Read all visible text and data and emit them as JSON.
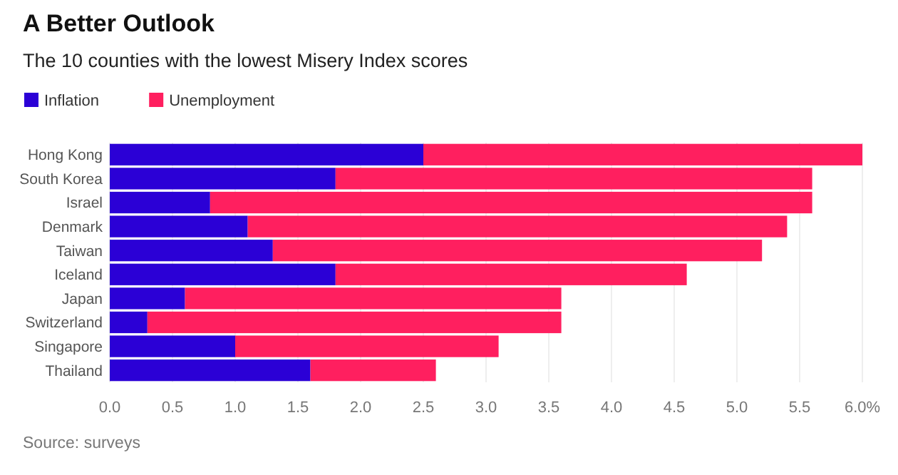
{
  "chart_data": {
    "type": "bar",
    "orientation": "horizontal",
    "stacked": true,
    "title": "A Better Outlook",
    "subtitle": "The 10 counties with the lowest Misery Index scores",
    "categories": [
      "Hong Kong",
      "South Korea",
      "Israel",
      "Denmark",
      "Taiwan",
      "Iceland",
      "Japan",
      "Switzerland",
      "Singapore",
      "Thailand"
    ],
    "series": [
      {
        "name": "Inflation",
        "color": "#2b00d6",
        "values": [
          2.5,
          1.8,
          0.8,
          1.1,
          1.3,
          1.8,
          0.6,
          0.3,
          1.0,
          1.6
        ]
      },
      {
        "name": "Unemployment",
        "color": "#ff1f5f",
        "values": [
          3.5,
          3.8,
          4.8,
          4.3,
          3.9,
          2.8,
          3.0,
          3.3,
          2.1,
          1.0
        ]
      }
    ],
    "xlim": [
      0,
      6
    ],
    "xticks": [
      {
        "value": 0,
        "label": "0.0"
      },
      {
        "value": 0.5,
        "label": "0.5"
      },
      {
        "value": 1,
        "label": "1.0"
      },
      {
        "value": 1.5,
        "label": "1.5"
      },
      {
        "value": 2,
        "label": "2.0"
      },
      {
        "value": 2.5,
        "label": "2.5"
      },
      {
        "value": 3,
        "label": "3.0"
      },
      {
        "value": 3.5,
        "label": "3.5"
      },
      {
        "value": 4,
        "label": "4.0"
      },
      {
        "value": 4.5,
        "label": "4.5"
      },
      {
        "value": 5,
        "label": "5.0"
      },
      {
        "value": 5.5,
        "label": "5.5"
      },
      {
        "value": 6,
        "label": "6.0%"
      }
    ],
    "grid": "x",
    "legend": "top left",
    "annotations": [
      "Source: surveys"
    ]
  }
}
